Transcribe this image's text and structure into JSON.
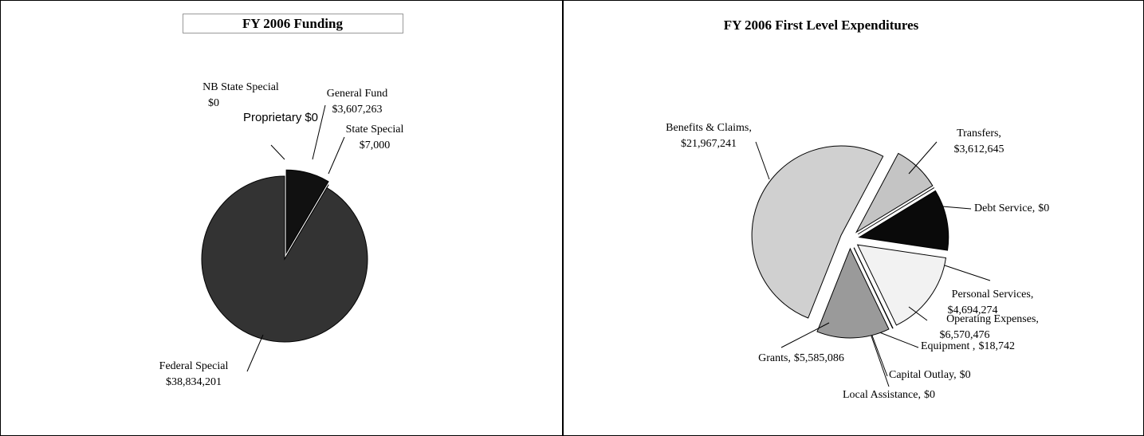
{
  "chart_data": [
    {
      "type": "pie",
      "title": "FY 2006 Funding",
      "categories": [
        "General Fund",
        "State Special",
        "Federal Special",
        "NB State Special",
        "Proprietary"
      ],
      "values": [
        3607263,
        7000,
        38834201,
        0,
        0
      ],
      "value_labels": [
        "$3,607,263",
        "$7,000",
        "$38,834,201",
        "$0",
        "$0"
      ],
      "colors": [
        "#111111",
        "#333333",
        "#333333",
        "#333333",
        "#333333"
      ]
    },
    {
      "type": "pie",
      "title": "FY 2006 First Level Expenditures",
      "categories": [
        "Transfers,",
        "Debt Service,",
        "Personal Services,",
        "Operating Expenses,",
        "Equipment ,",
        "Capital Outlay,",
        "Local Assistance,",
        "Grants,",
        "Benefits & Claims,"
      ],
      "values": [
        3612645,
        0,
        4694274,
        6570476,
        18742,
        0,
        0,
        5585086,
        21967241
      ],
      "value_labels": [
        "$3,612,645",
        "$0",
        "$4,694,274",
        "$6,570,476",
        "$18,742",
        "$0",
        "$0",
        "$5,585,086",
        "$21,967,241"
      ],
      "colors": [
        "#c4c4c4",
        "#888888",
        "#0a0a0a",
        "#f2f2f2",
        "#888888",
        "#888888",
        "#888888",
        "#9a9a9a",
        "#d0d0d0"
      ]
    }
  ]
}
